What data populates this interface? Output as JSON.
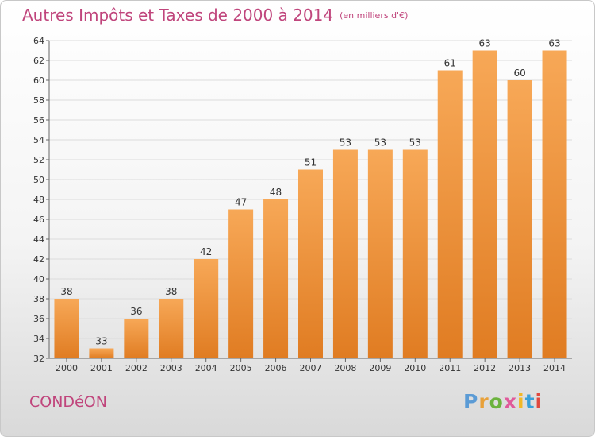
{
  "header": {
    "title": "Autres Impôts et Taxes de 2000 à 2014",
    "unit": "(en milliers d'€)"
  },
  "footer": {
    "commune": "CONDéON",
    "logo_text": "Proxiti",
    "logo_colors": [
      "#5b9bd5",
      "#e8a13a",
      "#6cb33e",
      "#e05a9b",
      "#f2b826",
      "#3aa0d8",
      "#e0483e"
    ]
  },
  "colors": {
    "bar_light": "#f7a857",
    "bar_dark": "#e07c22",
    "title": "#c0457c"
  },
  "chart_data": {
    "type": "bar",
    "categories": [
      "2000",
      "2001",
      "2002",
      "2003",
      "2004",
      "2005",
      "2006",
      "2007",
      "2008",
      "2009",
      "2010",
      "2011",
      "2012",
      "2013",
      "2014"
    ],
    "values": [
      38,
      33,
      36,
      38,
      42,
      47,
      48,
      51,
      53,
      53,
      53,
      61,
      63,
      60,
      63
    ],
    "ylim": [
      32,
      64
    ],
    "yticks": [
      32,
      34,
      36,
      38,
      40,
      42,
      44,
      46,
      48,
      50,
      52,
      54,
      56,
      58,
      60,
      62,
      64
    ],
    "grid": true
  }
}
